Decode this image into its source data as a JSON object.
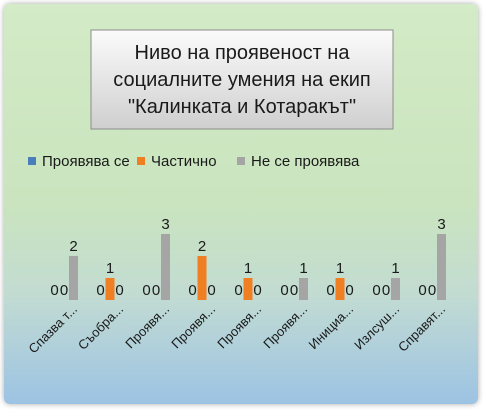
{
  "chart_data": {
    "type": "bar",
    "title_lines": [
      "Ниво на проявеност на",
      "социалните умения на  екип",
      "\"Калинката и Котаракът\""
    ],
    "categories": [
      "Спазва т...",
      "Съобра...",
      "Проявя...",
      "Проявя...",
      "Проявя...",
      "Проявя...",
      "Инициа...",
      "Излсуш...",
      "Справят..."
    ],
    "series": [
      {
        "name": "Проявява се",
        "color": "#4a7ebb",
        "values": [
          0,
          0,
          0,
          0,
          0,
          0,
          0,
          0,
          0
        ]
      },
      {
        "name": "Частично",
        "color": "#f07f24",
        "values": [
          0,
          1,
          0,
          2,
          1,
          0,
          1,
          0,
          0
        ]
      },
      {
        "name": "Не се проявява",
        "color": "#a5a5a5",
        "values": [
          2,
          0,
          3,
          0,
          0,
          1,
          0,
          1,
          3
        ]
      }
    ],
    "ylim": [
      0,
      3
    ],
    "legend_position": "top",
    "grid": false,
    "data_labels": true
  }
}
